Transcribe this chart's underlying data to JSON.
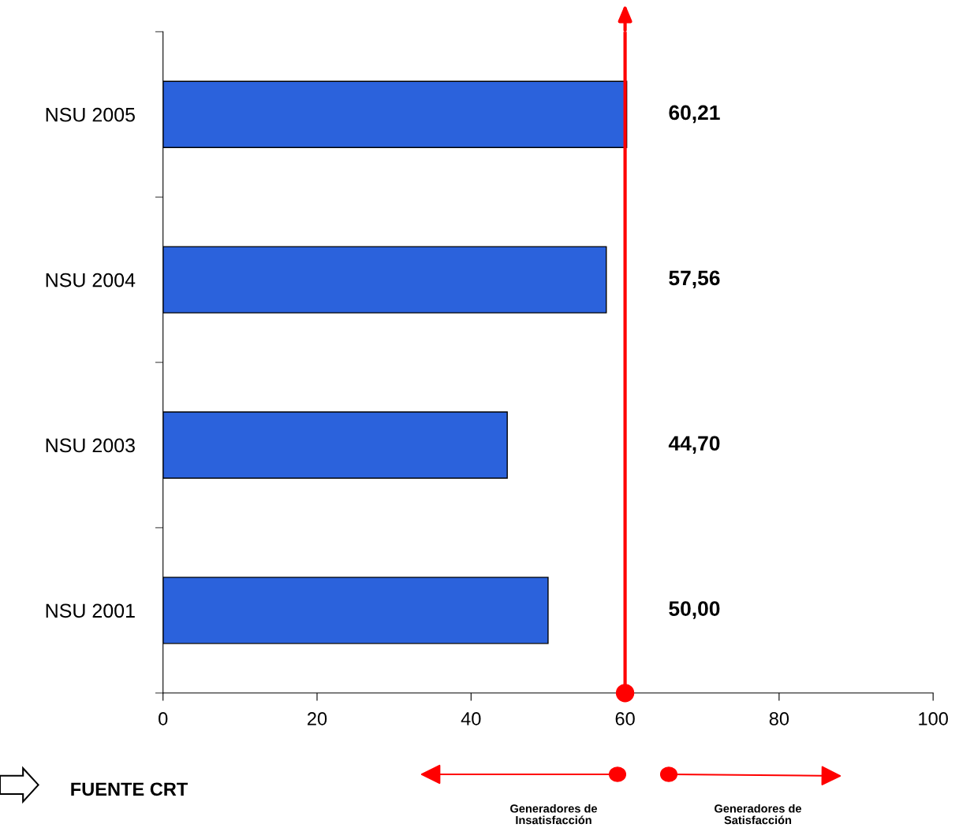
{
  "chart_data": {
    "type": "bar",
    "orientation": "horizontal",
    "categories": [
      "NSU 2005",
      "NSU 2004",
      "NSU 2003",
      "NSU 2001"
    ],
    "values": [
      60.21,
      57.56,
      44.7,
      50.0
    ],
    "value_labels": [
      "60,21",
      "57,56",
      "44,70",
      "50,00"
    ],
    "color": "#2b62dc",
    "xlim": [
      0,
      100
    ],
    "xticks": [
      0,
      20,
      40,
      60,
      80,
      100
    ],
    "grid": false,
    "legend": false,
    "ref_lines": [
      {
        "axis": "x",
        "value": 60,
        "color": "#ff0000"
      }
    ],
    "annotations": [
      "FUENTE CRT",
      "Generadores de\nInsatisfacción",
      "Generadores de\nSatisfacción"
    ]
  }
}
